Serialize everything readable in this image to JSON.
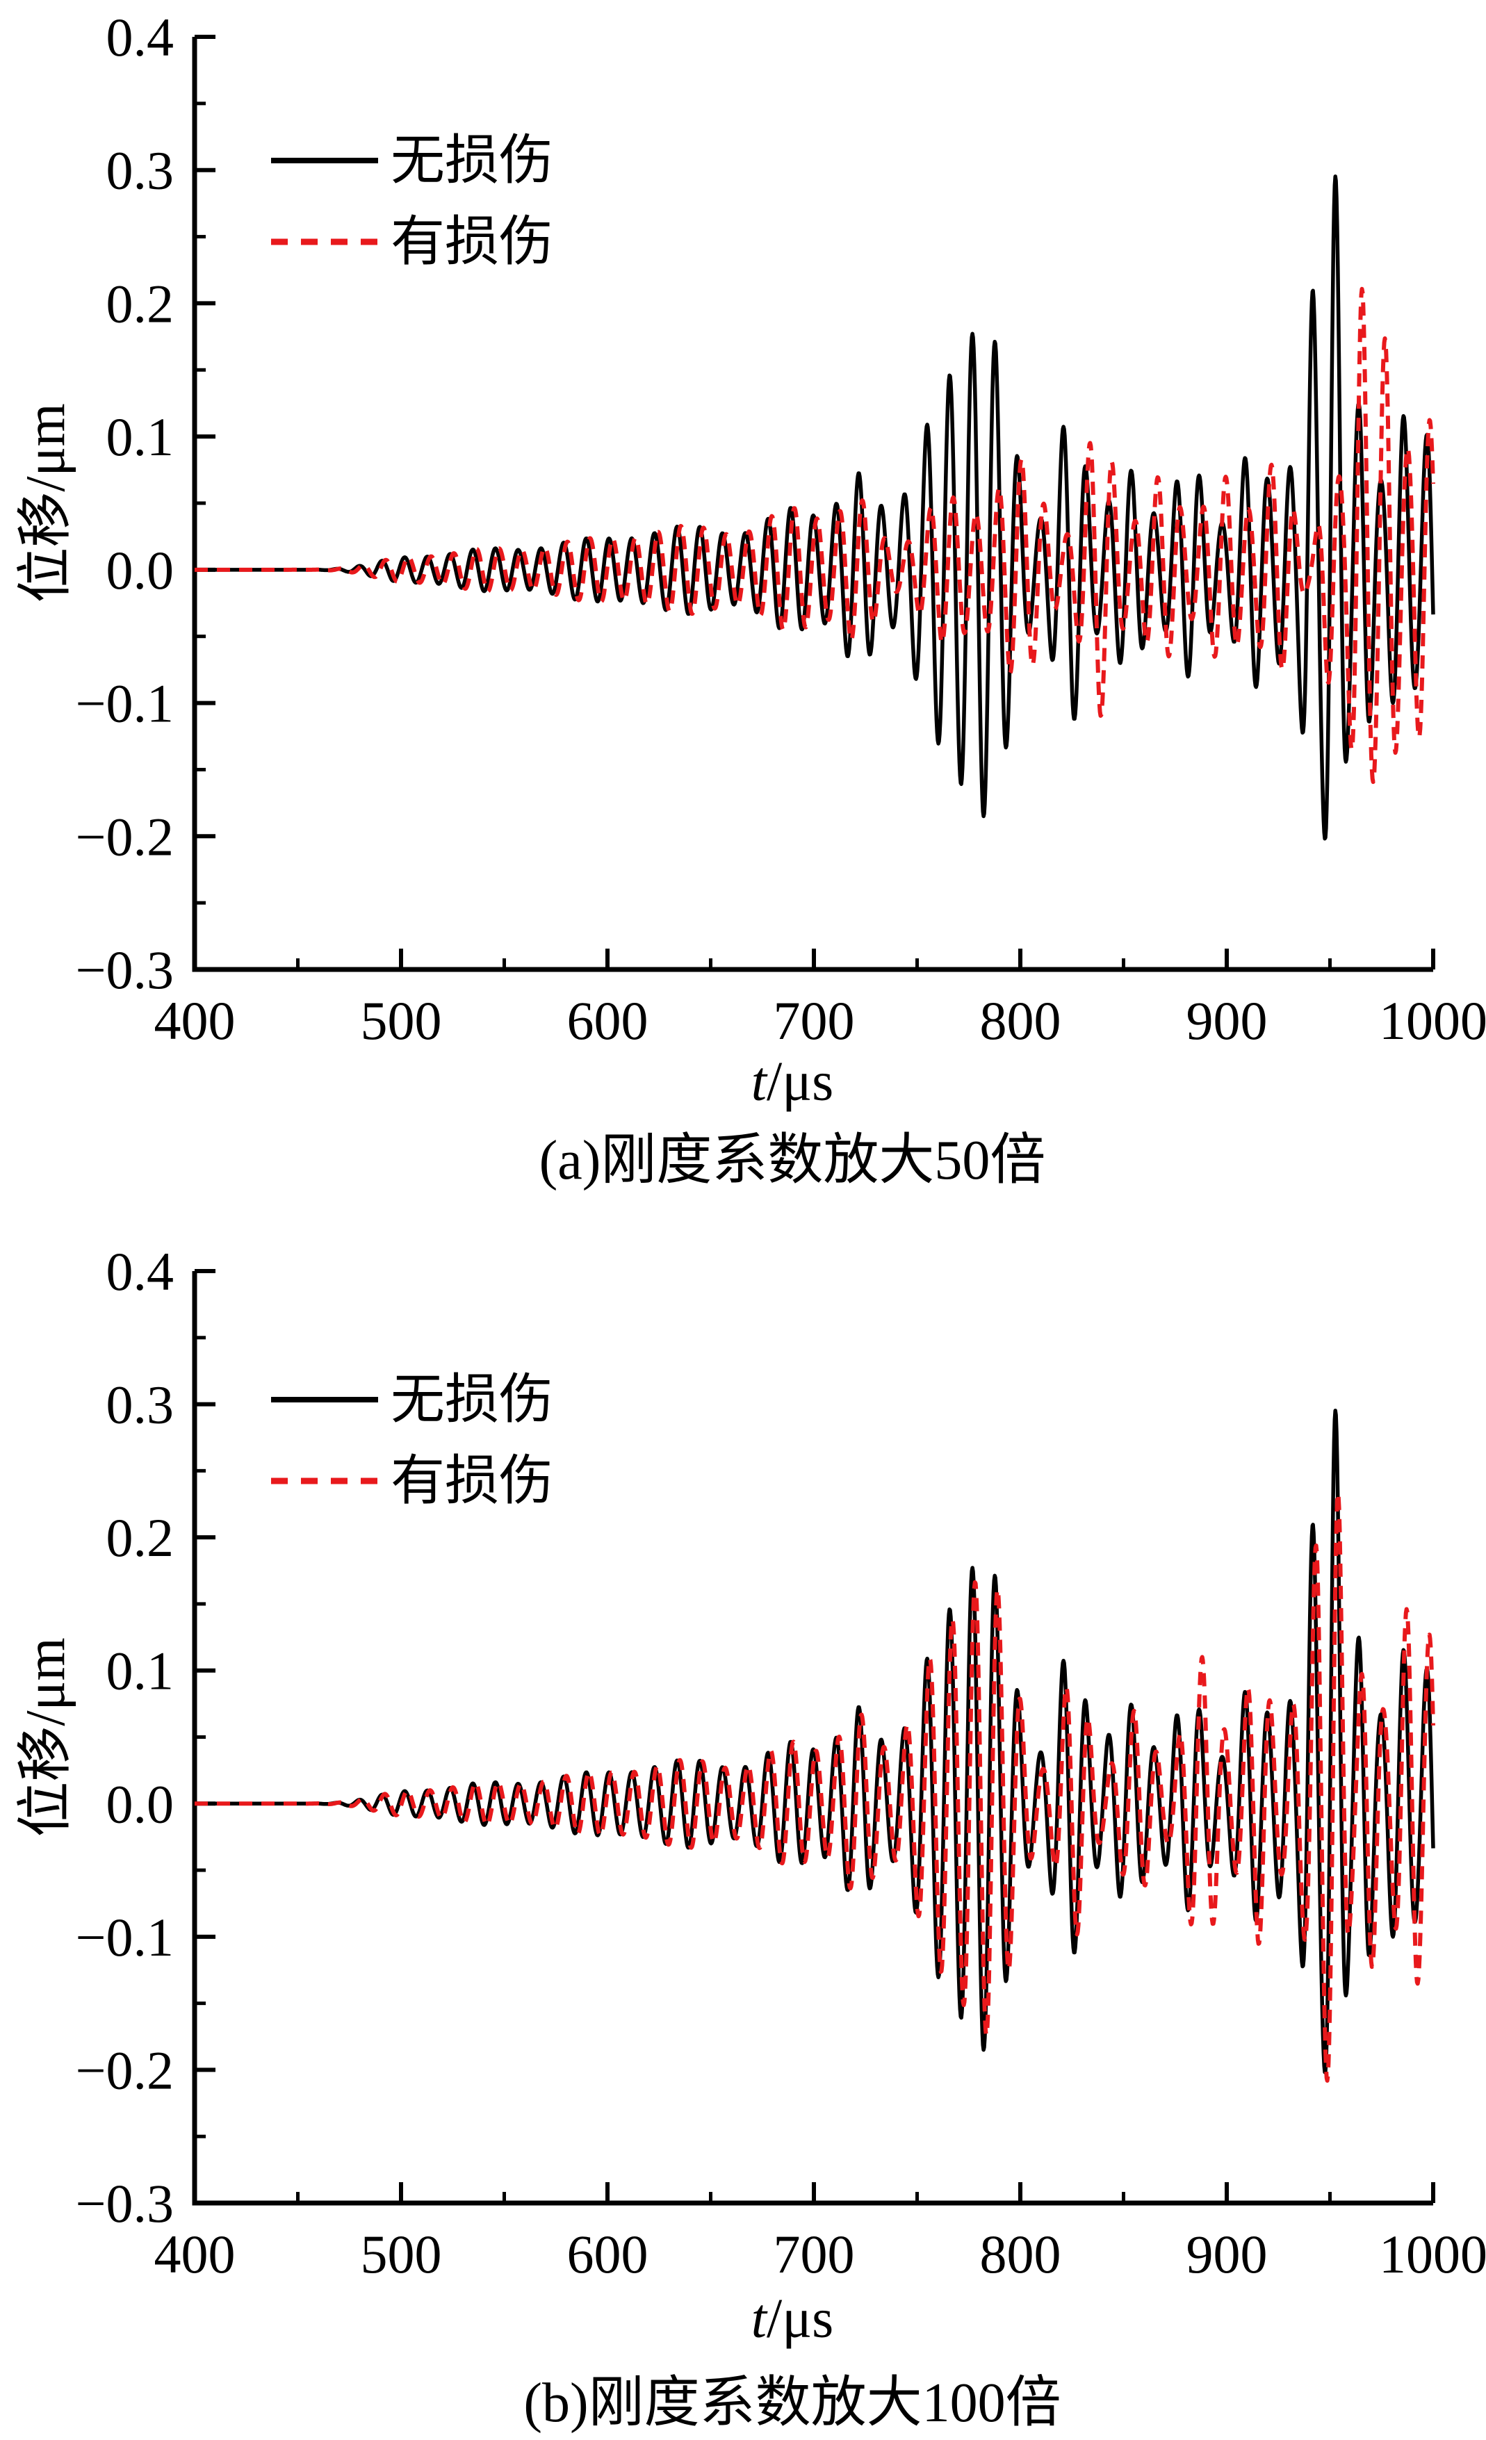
{
  "page": {
    "background": "#ffffff"
  },
  "colors": {
    "undamaged": "#000000",
    "damaged": "#e8191c",
    "axis": "#000000",
    "text": "#000000"
  },
  "legend": {
    "undamaged": "无损伤",
    "damaged": "有损伤"
  },
  "axes": {
    "ylabel": "位移/μm",
    "xlabel_var": "t",
    "xlabel_unit": "/μs"
  },
  "captions": {
    "a": "(a)刚度系数放大50倍",
    "b": "(b)刚度系数放大100倍"
  },
  "chart_data": [
    {
      "id": "a",
      "type": "line",
      "title": "(a)刚度系数放大50倍",
      "xlabel": "t/μs",
      "ylabel": "位移/μm",
      "xlim": [
        400,
        1000
      ],
      "ylim": [
        -0.3,
        0.4
      ],
      "x_major_ticks": [
        400,
        500,
        600,
        700,
        800,
        900,
        1000
      ],
      "x_tick_labels": [
        "400",
        "500",
        "600",
        "700",
        "800",
        "900",
        "1000"
      ],
      "x_minor_ticks": [
        450,
        550,
        650,
        750,
        850,
        950
      ],
      "y_major_ticks": [
        0.4,
        0.3,
        0.2,
        0.1,
        0.0,
        -0.1,
        -0.2,
        -0.3
      ],
      "y_tick_labels": [
        "0.4",
        "0.3",
        "0.2",
        "0.1",
        "0.0",
        "−0.1",
        "−0.2",
        "−0.3"
      ],
      "y_minor_ticks": [
        0.35,
        0.25,
        0.15,
        0.05,
        -0.05,
        -0.15,
        -0.25
      ],
      "grid": false,
      "legend_position": "upper-left-inside",
      "signal_model": "displacement(t) = envelope(t) * sin(2*pi*(t - 400 - carrier_shift_us)/carrier_period_us); envelope(t) = sum of A*exp(-((t-c)/w)^2) over packets [c, A, w]",
      "carrier_period_us": 11,
      "sampling_step_us": 0.3,
      "series": [
        {
          "key": "undamaged",
          "name": "无损伤",
          "style": "solid",
          "color": "#000000",
          "carrier_shift_us": 0,
          "envelope_packets": [
            [
              500,
              0.008,
              20
            ],
            [
              540,
              0.015,
              25
            ],
            [
              590,
              0.022,
              28
            ],
            [
              640,
              0.032,
              28
            ],
            [
              690,
              0.045,
              22
            ],
            [
              722,
              0.065,
              13
            ],
            [
              762,
              0.12,
              20
            ],
            [
              786,
              0.15,
              16
            ],
            [
              824,
              0.115,
              11
            ],
            [
              852,
              0.075,
              13
            ],
            [
              882,
              0.08,
              13
            ],
            [
              912,
              0.09,
              11
            ],
            [
              930,
              0.07,
              8
            ],
            [
              941,
              0.19,
              5
            ],
            [
              952,
              0.295,
              6
            ],
            [
              966,
              0.13,
              7
            ],
            [
              984,
              0.115,
              9
            ],
            [
              1002,
              0.12,
              9
            ]
          ]
        },
        {
          "key": "damaged",
          "name": "有损伤",
          "style": "dashed",
          "color": "#e8191c",
          "carrier_shift_us": 1.8,
          "envelope_packets": [
            [
              500,
              0.008,
              20
            ],
            [
              540,
              0.015,
              25
            ],
            [
              590,
              0.022,
              28
            ],
            [
              640,
              0.032,
              28
            ],
            [
              690,
              0.045,
              22
            ],
            [
              722,
              0.048,
              13
            ],
            [
              764,
              0.055,
              18
            ],
            [
              800,
              0.082,
              16
            ],
            [
              838,
              0.11,
              11
            ],
            [
              868,
              0.07,
              13
            ],
            [
              898,
              0.07,
              13
            ],
            [
              924,
              0.08,
              11
            ],
            [
              950,
              0.085,
              6
            ],
            [
              965,
              0.205,
              7
            ],
            [
              978,
              0.165,
              7
            ],
            [
              995,
              0.13,
              9
            ]
          ]
        }
      ]
    },
    {
      "id": "b",
      "type": "line",
      "title": "(b)刚度系数放大100倍",
      "xlabel": "t/μs",
      "ylabel": "位移/μm",
      "xlim": [
        400,
        1000
      ],
      "ylim": [
        -0.3,
        0.4
      ],
      "x_major_ticks": [
        400,
        500,
        600,
        700,
        800,
        900,
        1000
      ],
      "x_tick_labels": [
        "400",
        "500",
        "600",
        "700",
        "800",
        "900",
        "1000"
      ],
      "x_minor_ticks": [
        450,
        550,
        650,
        750,
        850,
        950
      ],
      "y_major_ticks": [
        0.4,
        0.3,
        0.2,
        0.1,
        0.0,
        -0.1,
        -0.2,
        -0.3
      ],
      "y_tick_labels": [
        "0.4",
        "0.3",
        "0.2",
        "0.1",
        "0.0",
        "−0.1",
        "−0.2",
        "−0.3"
      ],
      "y_minor_ticks": [
        0.35,
        0.25,
        0.15,
        0.05,
        -0.05,
        -0.15,
        -0.25
      ],
      "grid": false,
      "legend_position": "upper-left-inside",
      "signal_model": "displacement(t) = envelope(t) * sin(2*pi*(t - 400 - carrier_shift_us)/carrier_period_us); envelope(t) = sum of A*exp(-((t-c)/w)^2) over packets [c, A, w]",
      "carrier_period_us": 11,
      "sampling_step_us": 0.3,
      "series": [
        {
          "key": "undamaged",
          "name": "无损伤",
          "style": "solid",
          "color": "#000000",
          "carrier_shift_us": 0,
          "envelope_packets": [
            [
              500,
              0.008,
              20
            ],
            [
              540,
              0.015,
              25
            ],
            [
              590,
              0.022,
              28
            ],
            [
              640,
              0.032,
              28
            ],
            [
              690,
              0.045,
              22
            ],
            [
              722,
              0.065,
              13
            ],
            [
              762,
              0.12,
              20
            ],
            [
              786,
              0.15,
              16
            ],
            [
              824,
              0.115,
              11
            ],
            [
              852,
              0.075,
              13
            ],
            [
              882,
              0.08,
              13
            ],
            [
              912,
              0.09,
              11
            ],
            [
              930,
              0.07,
              8
            ],
            [
              941,
              0.19,
              5
            ],
            [
              952,
              0.295,
              6
            ],
            [
              966,
              0.13,
              7
            ],
            [
              984,
              0.115,
              9
            ],
            [
              1002,
              0.12,
              9
            ]
          ]
        },
        {
          "key": "damaged",
          "name": "有损伤",
          "style": "dashed",
          "color": "#e8191c",
          "carrier_shift_us": 1.3,
          "envelope_packets": [
            [
              500,
              0.008,
              20
            ],
            [
              540,
              0.015,
              25
            ],
            [
              590,
              0.022,
              28
            ],
            [
              640,
              0.032,
              28
            ],
            [
              690,
              0.045,
              22
            ],
            [
              722,
              0.06,
              13
            ],
            [
              762,
              0.115,
              20
            ],
            [
              787,
              0.145,
              16
            ],
            [
              826,
              0.1,
              10
            ],
            [
              856,
              0.07,
              12
            ],
            [
              888,
              0.11,
              12
            ],
            [
              915,
              0.105,
              10
            ],
            [
              935,
              0.078,
              8
            ],
            [
              944,
              0.155,
              5
            ],
            [
              953,
              0.235,
              6
            ],
            [
              969,
              0.125,
              7
            ],
            [
              988,
              0.145,
              9
            ],
            [
              1003,
              0.125,
              8
            ]
          ]
        }
      ]
    }
  ]
}
